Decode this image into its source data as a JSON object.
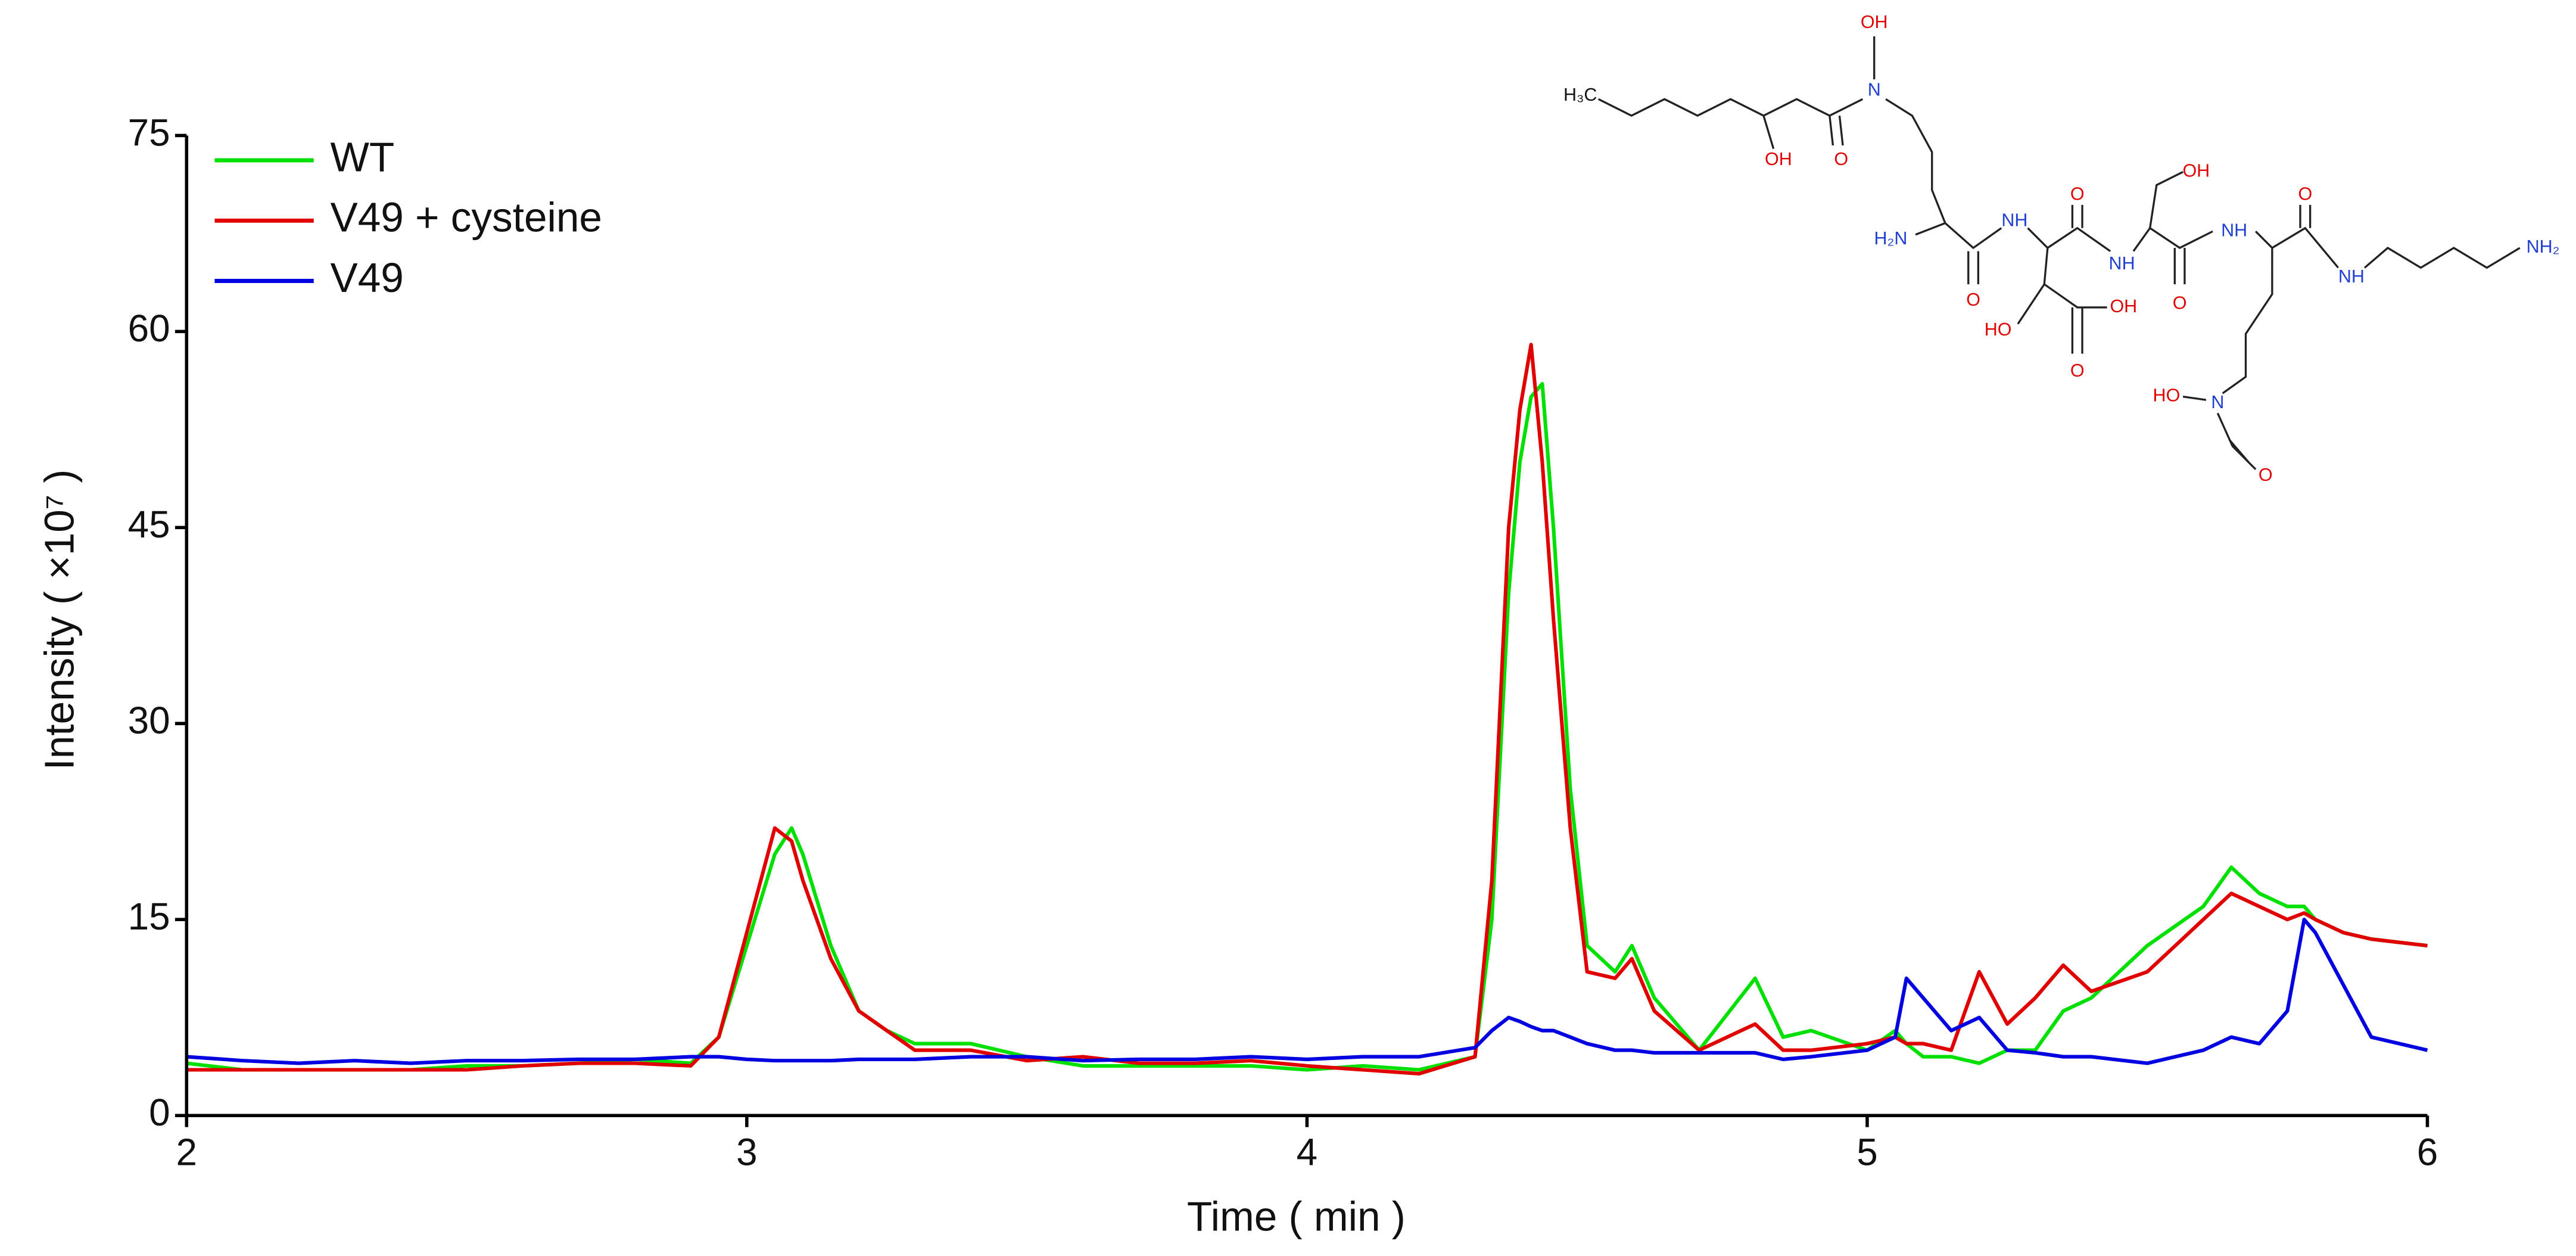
{
  "chart_data": {
    "type": "line",
    "x_label": "Time ( min )",
    "y_label": "Intensity ( ×10⁷ )",
    "xlim": [
      2,
      6
    ],
    "xticks": [
      2,
      3,
      4,
      5,
      6
    ],
    "ylim": [
      0,
      75
    ],
    "yticks": [
      0,
      15,
      30,
      45,
      60,
      75
    ],
    "legend": "upper left",
    "x": [
      2.0,
      2.1,
      2.2,
      2.3,
      2.4,
      2.5,
      2.6,
      2.7,
      2.8,
      2.9,
      2.95,
      3.0,
      3.05,
      3.08,
      3.1,
      3.15,
      3.2,
      3.25,
      3.3,
      3.4,
      3.5,
      3.6,
      3.7,
      3.8,
      3.9,
      4.0,
      4.1,
      4.2,
      4.3,
      4.33,
      4.36,
      4.38,
      4.4,
      4.42,
      4.44,
      4.47,
      4.5,
      4.55,
      4.58,
      4.62,
      4.7,
      4.8,
      4.85,
      4.9,
      5.0,
      5.05,
      5.07,
      5.1,
      5.15,
      5.2,
      5.25,
      5.3,
      5.35,
      5.4,
      5.5,
      5.6,
      5.65,
      5.7,
      5.75,
      5.78,
      5.8,
      5.85,
      5.9,
      6.0
    ],
    "series": [
      {
        "name": "WT",
        "color": "#00e000",
        "values": [
          4,
          3.5,
          3.5,
          3.5,
          3.5,
          3.8,
          3.8,
          4,
          4.3,
          4,
          6,
          13,
          20,
          22,
          20,
          13,
          8,
          6.5,
          5.5,
          5.5,
          4.5,
          3.8,
          3.8,
          3.8,
          3.8,
          3.5,
          3.8,
          3.5,
          4.5,
          15,
          40,
          50,
          55,
          56,
          45,
          25,
          13,
          11,
          13,
          9,
          5,
          10.5,
          6,
          6.5,
          5,
          6.5,
          5.5,
          4.5,
          4.5,
          4,
          5,
          5,
          8,
          9,
          13,
          16,
          19,
          17,
          16,
          16,
          15,
          14,
          13.5,
          13
        ]
      },
      {
        "name": "V49 + cysteine",
        "color": "#e00000",
        "values": [
          3.5,
          3.5,
          3.5,
          3.5,
          3.5,
          3.5,
          3.8,
          4,
          4,
          3.8,
          6,
          14,
          22,
          21,
          18,
          12,
          8,
          6.5,
          5,
          5,
          4.2,
          4.5,
          4,
          4,
          4.2,
          3.8,
          3.5,
          3.2,
          4.5,
          18,
          45,
          54,
          59,
          50,
          38,
          22,
          11,
          10.5,
          12,
          8,
          5,
          7,
          5,
          5,
          5.5,
          6,
          5.5,
          5.5,
          5,
          11,
          7,
          9,
          11.5,
          9.5,
          11,
          15,
          17,
          16,
          15,
          15.5,
          15,
          14,
          13.5,
          13
        ]
      },
      {
        "name": "V49",
        "color": "#0000e0",
        "values": [
          4.5,
          4.2,
          4,
          4.2,
          4,
          4.2,
          4.2,
          4.3,
          4.3,
          4.5,
          4.5,
          4.3,
          4.2,
          4.2,
          4.2,
          4.2,
          4.3,
          4.3,
          4.3,
          4.5,
          4.5,
          4.2,
          4.3,
          4.3,
          4.5,
          4.3,
          4.5,
          4.5,
          5.2,
          6.5,
          7.5,
          7.2,
          6.8,
          6.5,
          6.5,
          6,
          5.5,
          5,
          5,
          4.8,
          4.8,
          4.8,
          4.3,
          4.5,
          5,
          6,
          10.5,
          9,
          6.5,
          7.5,
          5,
          4.8,
          4.5,
          4.5,
          4,
          5,
          6,
          5.5,
          8,
          15,
          14,
          10,
          6,
          5
        ]
      }
    ]
  },
  "structure": {
    "labels": [
      "H₃C",
      "OH",
      "N",
      "O",
      "OH",
      "H₂N",
      "NH",
      "O",
      "O",
      "HO",
      "OH",
      "O",
      "OH",
      "NH",
      "O",
      "NH",
      "O",
      "NH",
      "NH₂",
      "HO",
      "N",
      "O"
    ]
  }
}
